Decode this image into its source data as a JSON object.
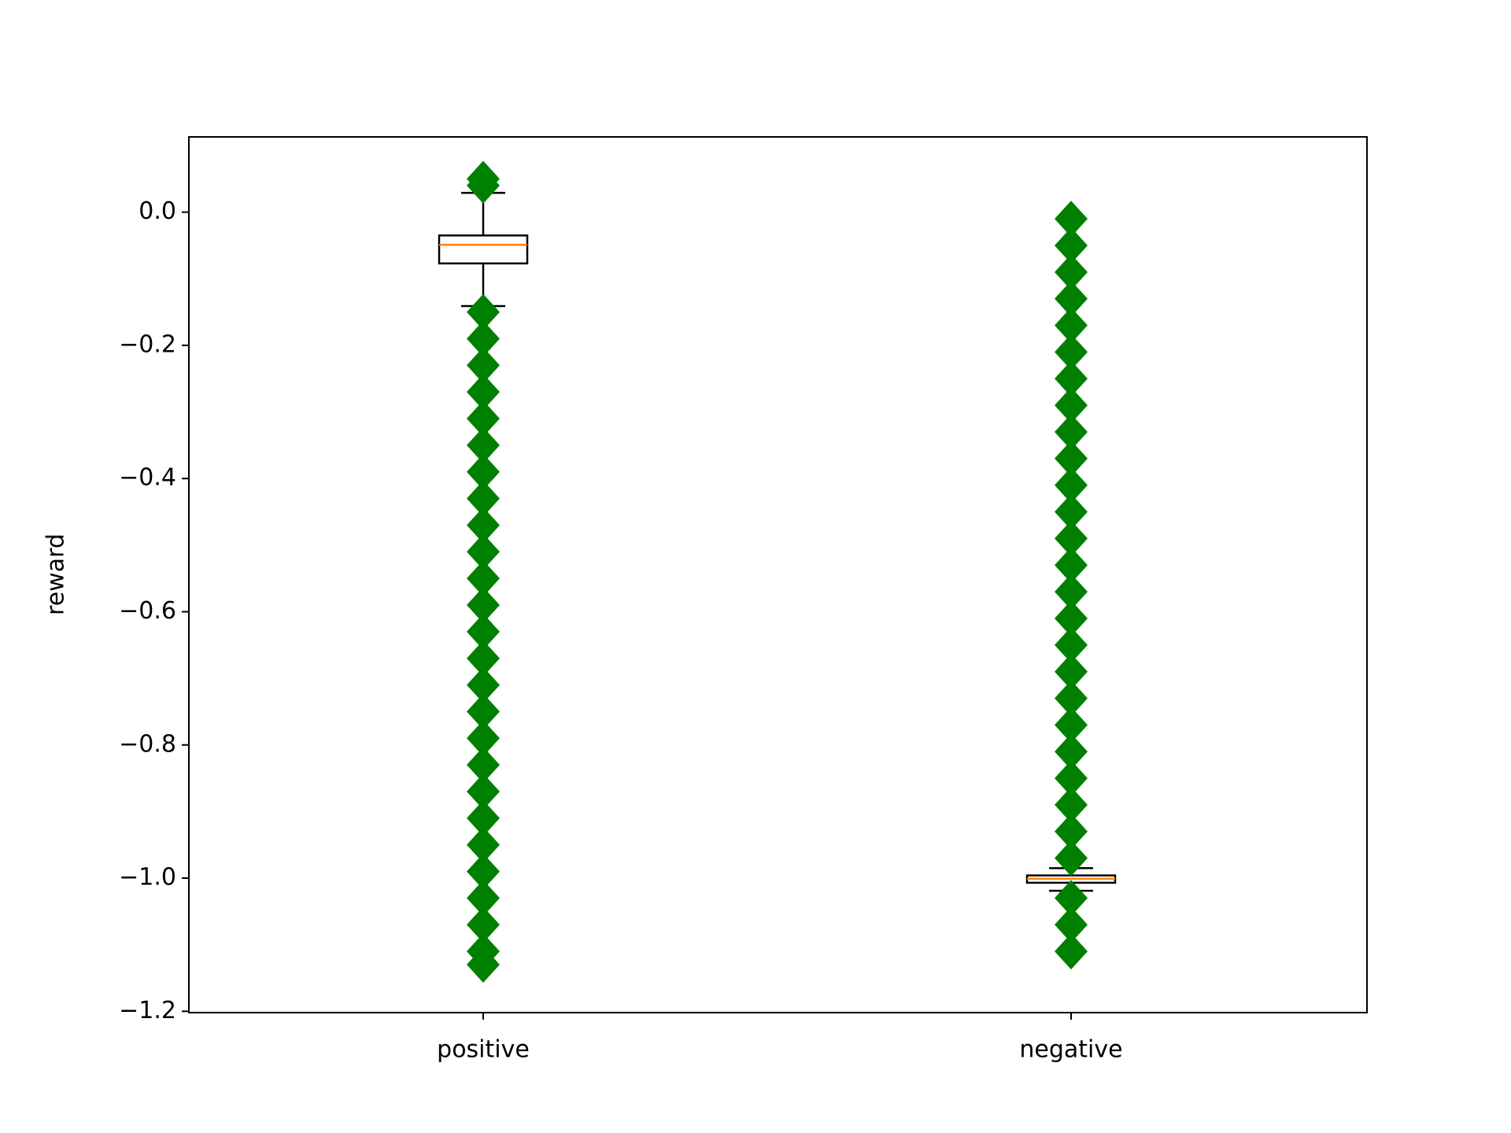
{
  "chart_data": {
    "type": "box",
    "ylabel": "reward",
    "categories": [
      "positive",
      "negative"
    ],
    "ylim": [
      -1.202,
      0.113
    ],
    "yticks": [
      {
        "value": 0,
        "label": "0.0"
      },
      {
        "value": -0.2,
        "label": "−0.2"
      },
      {
        "value": -0.4,
        "label": "−0.4"
      },
      {
        "value": -0.6,
        "label": "−0.6"
      },
      {
        "value": -0.8,
        "label": "−0.8"
      },
      {
        "value": -1.0,
        "label": "−1.0"
      },
      {
        "value": -1.2,
        "label": "−1.2"
      }
    ],
    "box_color": "#000000",
    "median_color": "#ff7f0e",
    "flier_color": "#008000",
    "boxes": [
      {
        "whislo": -0.141,
        "q1": -0.077,
        "med": -0.049,
        "q3": -0.035,
        "whishi": 0.029,
        "fliers": [
          0.05,
          0.04,
          -0.15,
          -0.19,
          -0.23,
          -0.27,
          -0.31,
          -0.35,
          -0.39,
          -0.43,
          -0.47,
          -0.51,
          -0.55,
          -0.59,
          -0.63,
          -0.67,
          -0.71,
          -0.75,
          -0.79,
          -0.83,
          -0.87,
          -0.91,
          -0.95,
          -0.99,
          -1.03,
          -1.07,
          -1.11,
          -1.13
        ]
      },
      {
        "whislo": -1.019,
        "q1": -1.007,
        "med": -1.001,
        "q3": -0.996,
        "whishi": -0.985,
        "fliers": [
          -0.01,
          -0.05,
          -0.09,
          -0.13,
          -0.17,
          -0.21,
          -0.25,
          -0.29,
          -0.33,
          -0.37,
          -0.41,
          -0.45,
          -0.49,
          -0.53,
          -0.57,
          -0.61,
          -0.65,
          -0.69,
          -0.73,
          -0.77,
          -0.81,
          -0.85,
          -0.89,
          -0.93,
          -0.97,
          -1.03,
          -1.07,
          -1.11
        ]
      }
    ]
  }
}
